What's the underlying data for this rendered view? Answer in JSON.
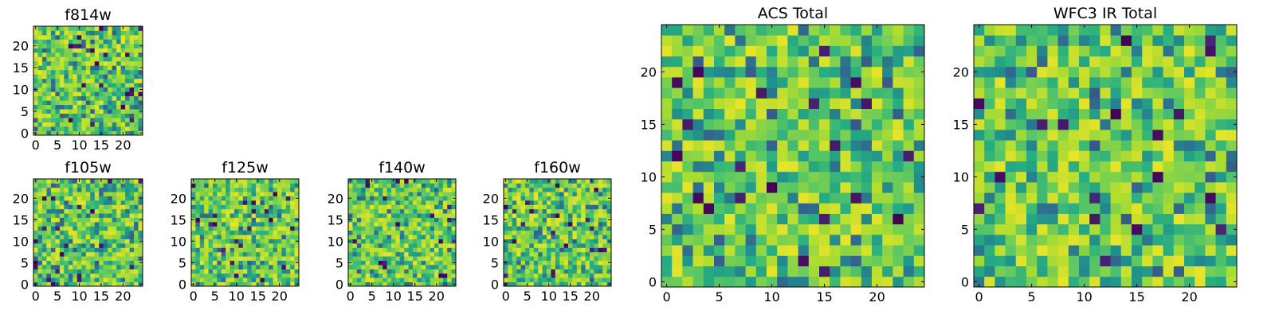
{
  "figure": {
    "description_note": "Grid of 2D pixel-noise heatmaps; values are visually random (viridis colormap)."
  },
  "chart_data": [
    {
      "type": "heatmap",
      "id": "f814w",
      "title": "f814w",
      "rows": 25,
      "cols": 25,
      "seed": 11,
      "colormap": "viridis",
      "xticks": [
        0,
        5,
        10,
        15,
        20
      ],
      "yticks": [
        0,
        5,
        10,
        15,
        20
      ],
      "xlim": [
        -0.5,
        24.5
      ],
      "ylim": [
        -0.5,
        24.5
      ]
    },
    {
      "type": "heatmap",
      "id": "f105w",
      "title": "f105w",
      "rows": 25,
      "cols": 25,
      "seed": 23,
      "colormap": "viridis",
      "xticks": [
        0,
        5,
        10,
        15,
        20
      ],
      "yticks": [
        0,
        5,
        10,
        15,
        20
      ],
      "xlim": [
        -0.5,
        24.5
      ],
      "ylim": [
        -0.5,
        24.5
      ]
    },
    {
      "type": "heatmap",
      "id": "f125w",
      "title": "f125w",
      "rows": 25,
      "cols": 25,
      "seed": 37,
      "colormap": "viridis",
      "xticks": [
        0,
        5,
        10,
        15,
        20
      ],
      "yticks": [
        0,
        5,
        10,
        15,
        20
      ],
      "xlim": [
        -0.5,
        24.5
      ],
      "ylim": [
        -0.5,
        24.5
      ]
    },
    {
      "type": "heatmap",
      "id": "f140w",
      "title": "f140w",
      "rows": 25,
      "cols": 25,
      "seed": 41,
      "colormap": "viridis",
      "xticks": [
        0,
        5,
        10,
        15,
        20
      ],
      "yticks": [
        0,
        5,
        10,
        15,
        20
      ],
      "xlim": [
        -0.5,
        24.5
      ],
      "ylim": [
        -0.5,
        24.5
      ]
    },
    {
      "type": "heatmap",
      "id": "f160w",
      "title": "f160w",
      "rows": 25,
      "cols": 25,
      "seed": 53,
      "colormap": "viridis",
      "xticks": [
        0,
        5,
        10,
        15,
        20
      ],
      "yticks": [
        0,
        5,
        10,
        15,
        20
      ],
      "xlim": [
        -0.5,
        24.5
      ],
      "ylim": [
        -0.5,
        24.5
      ]
    },
    {
      "type": "heatmap",
      "id": "acs_total",
      "title": "ACS Total",
      "rows": 25,
      "cols": 25,
      "seed": 67,
      "colormap": "viridis",
      "xticks": [
        0,
        5,
        10,
        15,
        20
      ],
      "yticks": [
        0,
        5,
        10,
        15,
        20
      ],
      "xlim": [
        -0.5,
        24.5
      ],
      "ylim": [
        -0.5,
        24.5
      ]
    },
    {
      "type": "heatmap",
      "id": "wfc3_ir_total",
      "title": "WFC3 IR Total",
      "rows": 25,
      "cols": 25,
      "seed": 79,
      "colormap": "viridis",
      "xticks": [
        0,
        5,
        10,
        15,
        20
      ],
      "yticks": [
        0,
        5,
        10,
        15,
        20
      ],
      "xlim": [
        -0.5,
        24.5
      ],
      "ylim": [
        -0.5,
        24.5
      ]
    }
  ]
}
